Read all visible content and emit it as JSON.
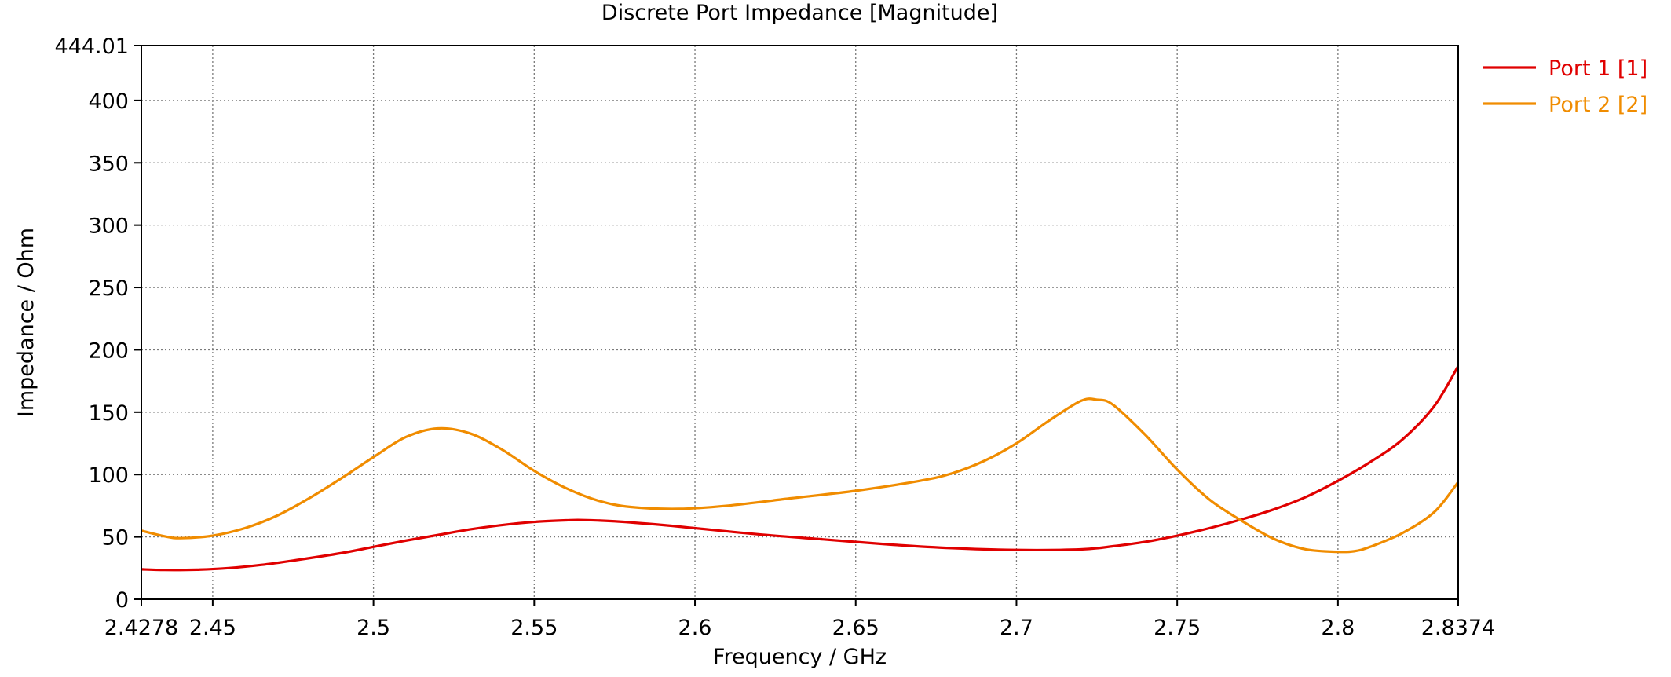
{
  "chart_data": {
    "type": "line",
    "title": "Discrete Port Impedance [Magnitude]",
    "xlabel": "Frequency / GHz",
    "ylabel": "Impedance / Ohm",
    "xlim": [
      2.4278,
      2.8374
    ],
    "ylim": [
      0,
      444.01
    ],
    "x_ticks": [
      {
        "value": 2.4278,
        "label": "2.4278"
      },
      {
        "value": 2.45,
        "label": "2.45"
      },
      {
        "value": 2.5,
        "label": "2.5"
      },
      {
        "value": 2.55,
        "label": "2.55"
      },
      {
        "value": 2.6,
        "label": "2.6"
      },
      {
        "value": 2.65,
        "label": "2.65"
      },
      {
        "value": 2.7,
        "label": "2.7"
      },
      {
        "value": 2.75,
        "label": "2.75"
      },
      {
        "value": 2.8,
        "label": "2.8"
      },
      {
        "value": 2.8374,
        "label": "2.8374"
      }
    ],
    "y_ticks": [
      {
        "value": 0,
        "label": "0"
      },
      {
        "value": 50,
        "label": "50"
      },
      {
        "value": 100,
        "label": "100"
      },
      {
        "value": 150,
        "label": "150"
      },
      {
        "value": 200,
        "label": "200"
      },
      {
        "value": 250,
        "label": "250"
      },
      {
        "value": 300,
        "label": "300"
      },
      {
        "value": 350,
        "label": "350"
      },
      {
        "value": 400,
        "label": "400"
      },
      {
        "value": 444.01,
        "label": "444.01"
      }
    ],
    "grid": true,
    "legend_position": "top-right, outside plot",
    "series": [
      {
        "name": "Port 1 [1]",
        "color": "#e00000",
        "x": [
          2.4278,
          2.435,
          2.445,
          2.455,
          2.465,
          2.475,
          2.49,
          2.5,
          2.51,
          2.52,
          2.53,
          2.54,
          2.55,
          2.56,
          2.565,
          2.575,
          2.59,
          2.6,
          2.62,
          2.64,
          2.66,
          2.68,
          2.7,
          2.72,
          2.73,
          2.74,
          2.75,
          2.76,
          2.77,
          2.78,
          2.79,
          2.8,
          2.81,
          2.82,
          2.83,
          2.8374
        ],
        "y": [
          24,
          23.5,
          23.7,
          25,
          27.5,
          31,
          37,
          42,
          47,
          51.5,
          56,
          59.5,
          62,
          63.3,
          63.5,
          62.5,
          59.5,
          57,
          52,
          48,
          44,
          41,
          39.5,
          40,
          42.5,
          46,
          51,
          57,
          64,
          72,
          82,
          95,
          110,
          128,
          155,
          187
        ]
      },
      {
        "name": "Port 2 [2]",
        "color": "#f08c00",
        "x": [
          2.4278,
          2.435,
          2.44,
          2.45,
          2.46,
          2.47,
          2.48,
          2.49,
          2.5,
          2.51,
          2.52,
          2.53,
          2.54,
          2.55,
          2.56,
          2.57,
          2.58,
          2.595,
          2.61,
          2.63,
          2.65,
          2.67,
          2.68,
          2.69,
          2.7,
          2.71,
          2.72,
          2.725,
          2.73,
          2.74,
          2.75,
          2.76,
          2.77,
          2.78,
          2.79,
          2.8,
          2.805,
          2.81,
          2.82,
          2.83,
          2.8374
        ],
        "y": [
          55,
          50.5,
          49,
          51,
          57,
          67,
          81,
          97,
          114,
          130,
          137,
          133,
          120,
          103,
          89,
          79,
          74,
          72.5,
          75,
          81,
          87,
          95,
          101,
          111,
          125,
          143,
          159,
          160,
          156,
          132,
          104,
          80,
          63,
          48.5,
          40,
          38,
          38.5,
          42,
          53,
          70,
          94
        ]
      }
    ]
  }
}
